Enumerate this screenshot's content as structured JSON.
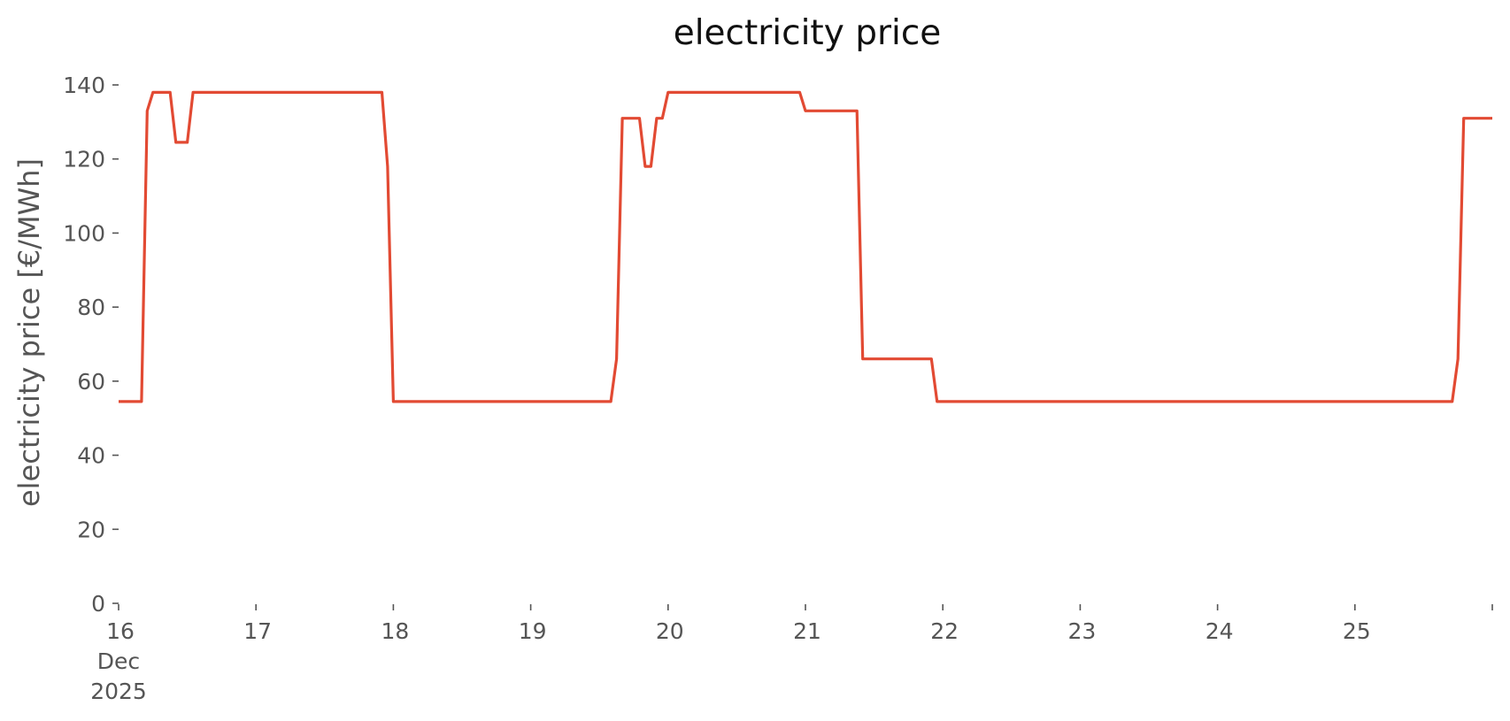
{
  "chart_data": {
    "type": "line",
    "title": "electricity price",
    "xlabel": "",
    "ylabel": "electricity price [€/MWh]",
    "x_unit": "date",
    "xlim": [
      "2025-12-16T00:00",
      "2025-12-26T00:00"
    ],
    "ylim": [
      0,
      140
    ],
    "y_ticks": [
      0,
      20,
      40,
      60,
      80,
      100,
      120,
      140
    ],
    "x_ticks": [
      {
        "date": "2025-12-16T00:00",
        "lines": [
          "16",
          "Dec",
          "2025"
        ]
      },
      {
        "date": "2025-12-17T00:00",
        "lines": [
          "17"
        ]
      },
      {
        "date": "2025-12-18T00:00",
        "lines": [
          "18"
        ]
      },
      {
        "date": "2025-12-19T00:00",
        "lines": [
          "19"
        ]
      },
      {
        "date": "2025-12-20T00:00",
        "lines": [
          "20"
        ]
      },
      {
        "date": "2025-12-21T00:00",
        "lines": [
          "21"
        ]
      },
      {
        "date": "2025-12-22T00:00",
        "lines": [
          "22"
        ]
      },
      {
        "date": "2025-12-23T00:00",
        "lines": [
          "23"
        ]
      },
      {
        "date": "2025-12-24T00:00",
        "lines": [
          "24"
        ]
      },
      {
        "date": "2025-12-25T00:00",
        "lines": [
          "25"
        ]
      },
      {
        "date": "2025-12-26T00:00",
        "lines": [
          ""
        ]
      }
    ],
    "grid": false,
    "legend": "none",
    "line_color": "#E24A33",
    "series": [
      {
        "points": [
          [
            "2025-12-16T00:00",
            54.5
          ],
          [
            "2025-12-16T04:00",
            54.5
          ],
          [
            "2025-12-16T05:00",
            133
          ],
          [
            "2025-12-16T06:00",
            138
          ],
          [
            "2025-12-16T09:00",
            138
          ],
          [
            "2025-12-16T10:00",
            124.5
          ],
          [
            "2025-12-16T12:00",
            124.5
          ],
          [
            "2025-12-16T13:00",
            138
          ],
          [
            "2025-12-17T22:00",
            138
          ],
          [
            "2025-12-17T23:00",
            118
          ],
          [
            "2025-12-18T00:00",
            54.5
          ],
          [
            "2025-12-19T14:00",
            54.5
          ],
          [
            "2025-12-19T15:00",
            66
          ],
          [
            "2025-12-19T16:00",
            131
          ],
          [
            "2025-12-19T19:00",
            131
          ],
          [
            "2025-12-19T20:00",
            118
          ],
          [
            "2025-12-19T21:00",
            118
          ],
          [
            "2025-12-19T22:00",
            131
          ],
          [
            "2025-12-19T23:00",
            131
          ],
          [
            "2025-12-20T00:00",
            138
          ],
          [
            "2025-12-20T23:00",
            138
          ],
          [
            "2025-12-21T00:00",
            133
          ],
          [
            "2025-12-21T09:00",
            133
          ],
          [
            "2025-12-21T10:00",
            66
          ],
          [
            "2025-12-21T22:00",
            66
          ],
          [
            "2025-12-21T23:00",
            54.5
          ],
          [
            "2025-12-25T17:00",
            54.5
          ],
          [
            "2025-12-25T18:00",
            66
          ],
          [
            "2025-12-25T19:00",
            131
          ],
          [
            "2025-12-26T00:00",
            131
          ]
        ]
      }
    ]
  }
}
